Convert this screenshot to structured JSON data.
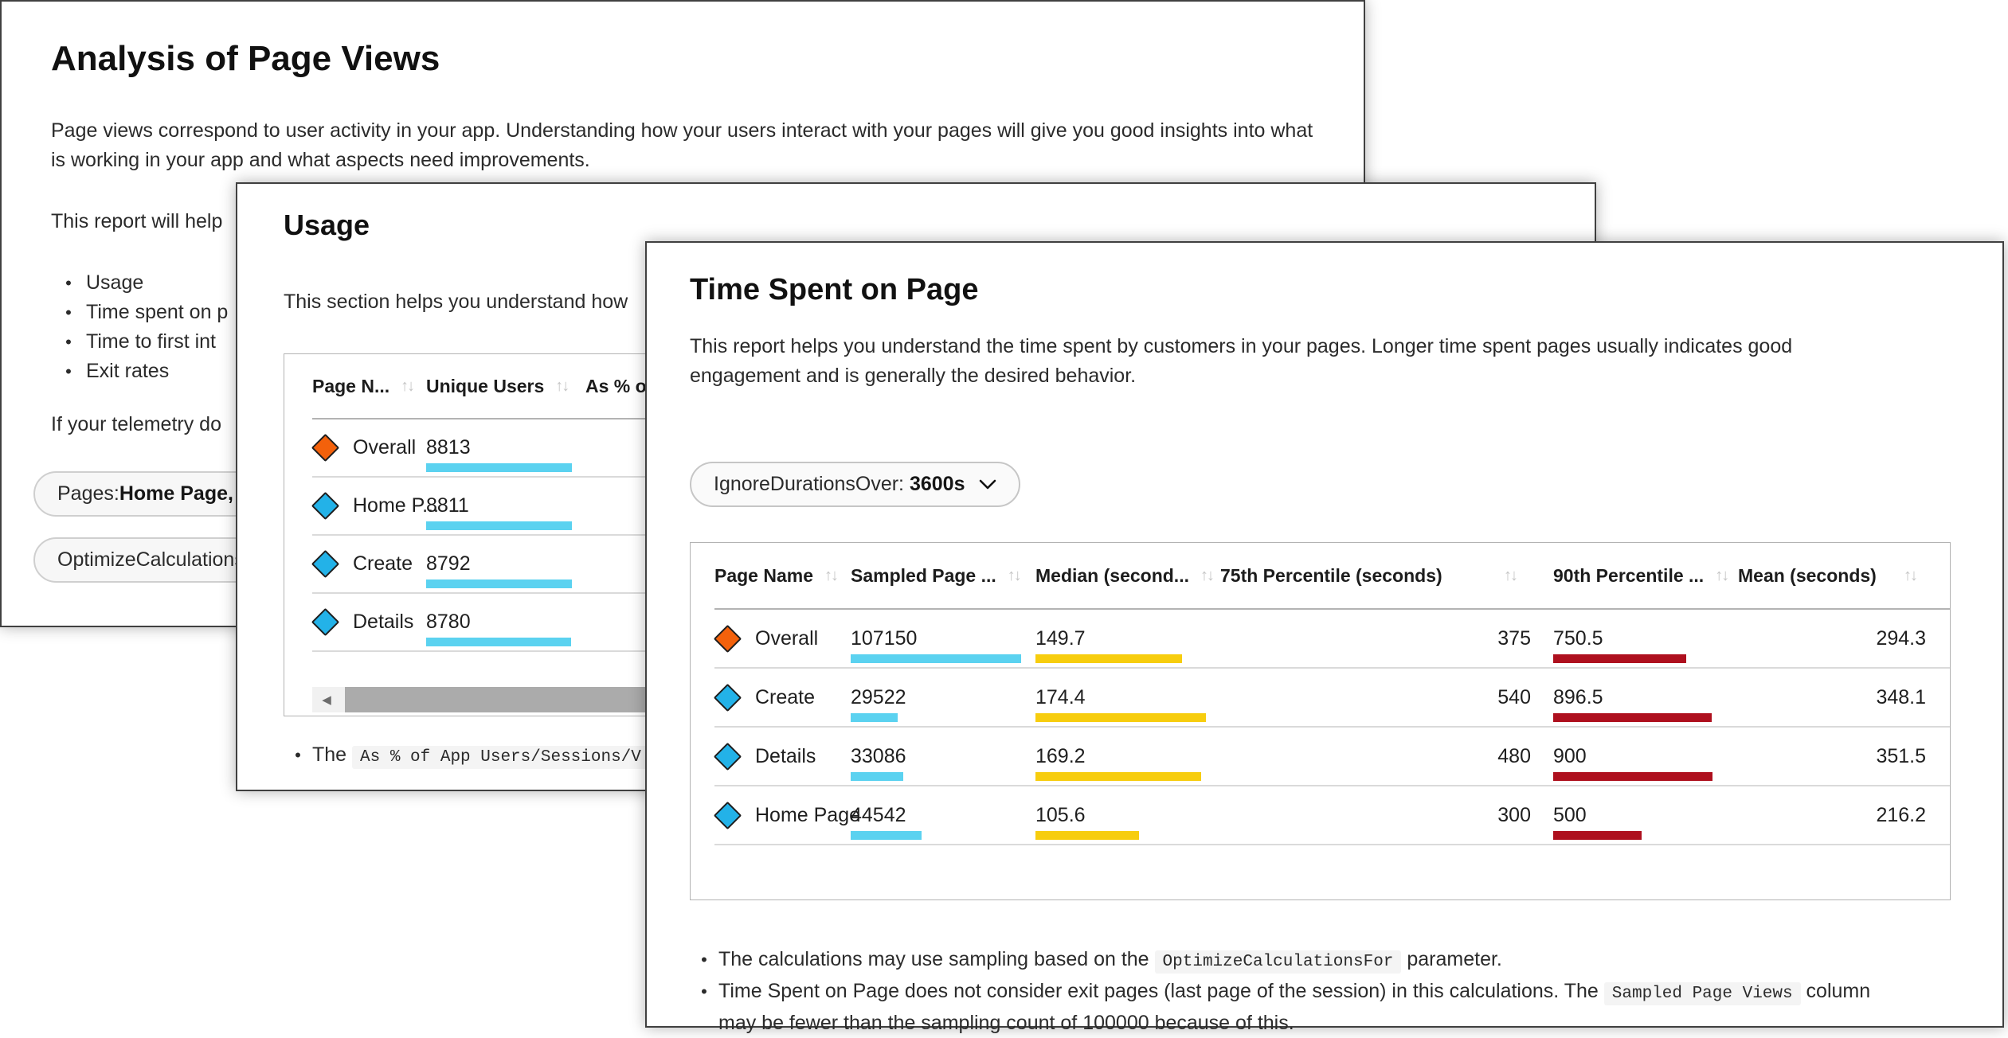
{
  "colors": {
    "bar_cyan": "#5BD2F0",
    "bar_yellow": "#F7CD0E",
    "bar_red": "#AE101E",
    "marker_orange": "#F3610B",
    "marker_blue": "#23B2E8"
  },
  "icons": {
    "sort": "↑↓",
    "chevron_down": "⌄",
    "scroll_left": "◀"
  },
  "analysis_card": {
    "title": "Analysis of Page Views",
    "intro": "Page views correspond to user activity in your app. Understanding how your users interact with your pages will give you good insights into what is working in your app and what aspects need improvements.",
    "report_help_fragment": "This report will help",
    "bullets": [
      "Usage",
      "Time spent on p",
      "Time to first int",
      "Exit rates"
    ],
    "telemetry_fragment": "If your telemetry do",
    "pills": [
      {
        "segments": [
          {
            "text": "Pages: "
          },
          {
            "bold": "Home Page, D"
          }
        ]
      },
      {
        "segments": [
          {
            "text": "OptimizeCalculations"
          }
        ]
      }
    ]
  },
  "usage_card": {
    "title": "Usage",
    "intro_fragment": "This section helps you understand how",
    "table": {
      "columns": [
        "Page N...",
        "Unique Users",
        "As % of"
      ],
      "bar_max": 8813,
      "rows": [
        {
          "page": "Overall",
          "marker": "orange",
          "unique_users": "8813",
          "unique_users_value": 8813
        },
        {
          "page": "Home P...",
          "marker": "blue",
          "unique_users": "8811",
          "unique_users_value": 8811
        },
        {
          "page": "Create",
          "marker": "blue",
          "unique_users": "8792",
          "unique_users_value": 8792
        },
        {
          "page": "Details",
          "marker": "blue",
          "unique_users": "8780",
          "unique_users_value": 8780
        }
      ]
    },
    "note": {
      "segments": [
        {
          "text": "The "
        },
        {
          "code": "As % of App Users/Sessions/V"
        }
      ]
    }
  },
  "time_card": {
    "title": "Time Spent on Page",
    "intro": "This report helps you understand the time spent by customers in your pages. Longer time spent pages usually indicates good engagement and is generally the desired behavior.",
    "filter_pill": {
      "segments": [
        {
          "text": "IgnoreDurationsOver: "
        },
        {
          "bold": "3600s"
        }
      ]
    },
    "table": {
      "columns": [
        "Page Name",
        "Sampled Page ...",
        "Median (second...",
        "75th Percentile (seconds)",
        "90th Percentile ...",
        "Mean (seconds)"
      ],
      "bar_max": {
        "sampled": 107150,
        "median": 174.4,
        "p90": 900
      },
      "rows": [
        {
          "page": "Overall",
          "marker": "orange",
          "sampled": "107150",
          "sampled_value": 107150,
          "median": "149.7",
          "median_value": 149.7,
          "p75": "375",
          "p90": "750.5",
          "p90_value": 750.5,
          "mean": "294.3"
        },
        {
          "page": "Create",
          "marker": "blue",
          "sampled": "29522",
          "sampled_value": 29522,
          "median": "174.4",
          "median_value": 174.4,
          "p75": "540",
          "p90": "896.5",
          "p90_value": 896.5,
          "mean": "348.1"
        },
        {
          "page": "Details",
          "marker": "blue",
          "sampled": "33086",
          "sampled_value": 33086,
          "median": "169.2",
          "median_value": 169.2,
          "p75": "480",
          "p90": "900",
          "p90_value": 900,
          "mean": "351.5"
        },
        {
          "page": "Home Page",
          "marker": "blue",
          "sampled": "44542",
          "sampled_value": 44542,
          "median": "105.6",
          "median_value": 105.6,
          "p75": "300",
          "p90": "500",
          "p90_value": 500,
          "mean": "216.2"
        }
      ]
    },
    "notes": [
      {
        "segments": [
          {
            "text": "The calculations may use sampling based on the "
          },
          {
            "code": "OptimizeCalculationsFor"
          },
          {
            "text": " parameter."
          }
        ]
      },
      {
        "segments": [
          {
            "text": "Time Spent on Page does not consider exit pages (last page of the session) in this calculations. The "
          },
          {
            "code": "Sampled Page Views"
          },
          {
            "text": " column"
          },
          {
            "break": true
          },
          {
            "text": "may be fewer than the sampling count of 100000 because of this."
          }
        ]
      }
    ]
  }
}
